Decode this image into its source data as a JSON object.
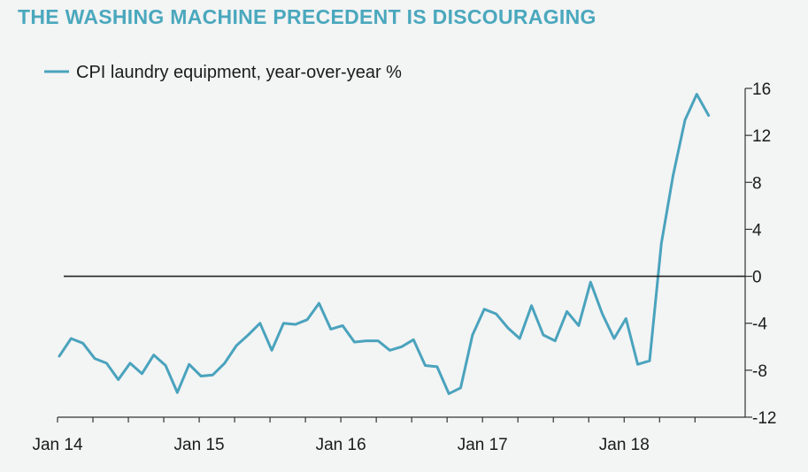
{
  "chart_data": {
    "type": "line",
    "title": "THE WASHING MACHINE PRECEDENT IS DISCOURAGING",
    "xlabel": "",
    "ylabel": "",
    "x_tick_labels": [
      "Jan 14",
      "Jan 15",
      "Jan 16",
      "Jan 17",
      "Jan 18"
    ],
    "x_range": [
      "Jan 14",
      "Aug 18"
    ],
    "y_axis_side": "right",
    "ylim": [
      -12,
      16
    ],
    "y_ticks": [
      16,
      12,
      8,
      4,
      0,
      -4,
      -8,
      -12
    ],
    "y_tick_labels": [
      "16",
      "12",
      "8",
      "4",
      "0",
      "-4",
      "-8",
      "-12"
    ],
    "zero_line": true,
    "grid": false,
    "legend": {
      "position": "top-left"
    },
    "colors": {
      "series": "#4aa3bd",
      "title": "#4aa8bd",
      "axis": "#333333",
      "background": "#f3f4f4"
    },
    "series": [
      {
        "name": "CPI laundry equipment, year-over-year %",
        "x": [
          "Jan 14",
          "Feb 14",
          "Mar 14",
          "Apr 14",
          "May 14",
          "Jun 14",
          "Jul 14",
          "Aug 14",
          "Sep 14",
          "Oct 14",
          "Nov 14",
          "Dec 14",
          "Jan 15",
          "Feb 15",
          "Mar 15",
          "Apr 15",
          "May 15",
          "Jun 15",
          "Jul 15",
          "Aug 15",
          "Sep 15",
          "Oct 15",
          "Nov 15",
          "Dec 15",
          "Jan 16",
          "Feb 16",
          "Mar 16",
          "Apr 16",
          "May 16",
          "Jun 16",
          "Jul 16",
          "Aug 16",
          "Sep 16",
          "Oct 16",
          "Nov 16",
          "Dec 16",
          "Jan 17",
          "Feb 17",
          "Mar 17",
          "Apr 17",
          "May 17",
          "Jun 17",
          "Jul 17",
          "Aug 17",
          "Sep 17",
          "Oct 17",
          "Nov 17",
          "Dec 17",
          "Jan 18",
          "Feb 18",
          "Mar 18",
          "Apr 18",
          "May 18",
          "Jun 18",
          "Jul 18",
          "Aug 18"
        ],
        "values": [
          -6.8,
          -5.3,
          -5.7,
          -7.0,
          -7.4,
          -8.8,
          -7.4,
          -8.3,
          -6.7,
          -7.6,
          -9.9,
          -7.5,
          -8.5,
          -8.4,
          -7.4,
          -5.9,
          -5.0,
          -4.0,
          -6.3,
          -4.0,
          -4.1,
          -3.7,
          -2.3,
          -4.5,
          -4.2,
          -5.6,
          -5.5,
          -5.5,
          -6.3,
          -6.0,
          -5.4,
          -7.6,
          -7.7,
          -10.0,
          -9.5,
          -5.0,
          -2.8,
          -3.2,
          -4.4,
          -5.3,
          -2.5,
          -5.0,
          -5.5,
          -3.0,
          -4.2,
          -0.5,
          -3.2,
          -5.3,
          -3.6,
          -7.5,
          -7.2,
          2.8,
          8.6,
          13.3,
          15.5,
          13.7
        ]
      }
    ]
  }
}
